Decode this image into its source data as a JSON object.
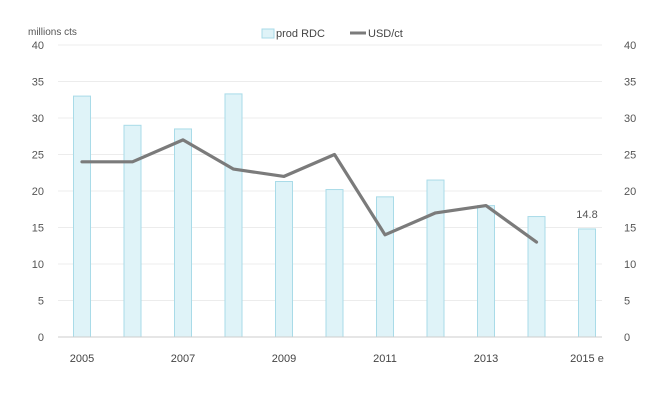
{
  "chart_data": {
    "type": "bar",
    "unit_label": "millions cts",
    "categories": [
      "2005",
      "2006",
      "2007",
      "2008",
      "2009",
      "2010",
      "2011",
      "2012",
      "2013",
      "2014",
      "2015 e"
    ],
    "x_tick_labels": [
      "2005",
      "",
      "2007",
      "",
      "2009",
      "",
      "2011",
      "",
      "2013",
      "",
      "2015 e"
    ],
    "series": [
      {
        "name": "prod RDC",
        "type": "bar",
        "values": [
          33.0,
          29.0,
          28.5,
          33.3,
          21.3,
          20.2,
          19.2,
          21.5,
          18.0,
          16.5,
          14.8
        ],
        "color": "#dff3f8",
        "stroke": "#a9dbe8"
      },
      {
        "name": "USD/ct",
        "type": "line",
        "values": [
          24,
          24,
          27,
          23,
          22,
          25,
          14,
          17,
          18,
          13,
          null
        ],
        "color": "#7b7b7b"
      }
    ],
    "annotations": [
      {
        "category": "2015 e",
        "text": "14.8"
      }
    ],
    "ylim": [
      0,
      40
    ],
    "y_ticks": [
      0,
      5,
      10,
      15,
      20,
      25,
      30,
      35,
      40
    ],
    "y2lim": [
      0,
      40
    ],
    "y2_ticks": [
      0,
      5,
      10,
      15,
      20,
      25,
      30,
      35,
      40
    ],
    "grid": true,
    "legend_position": "top-center"
  }
}
